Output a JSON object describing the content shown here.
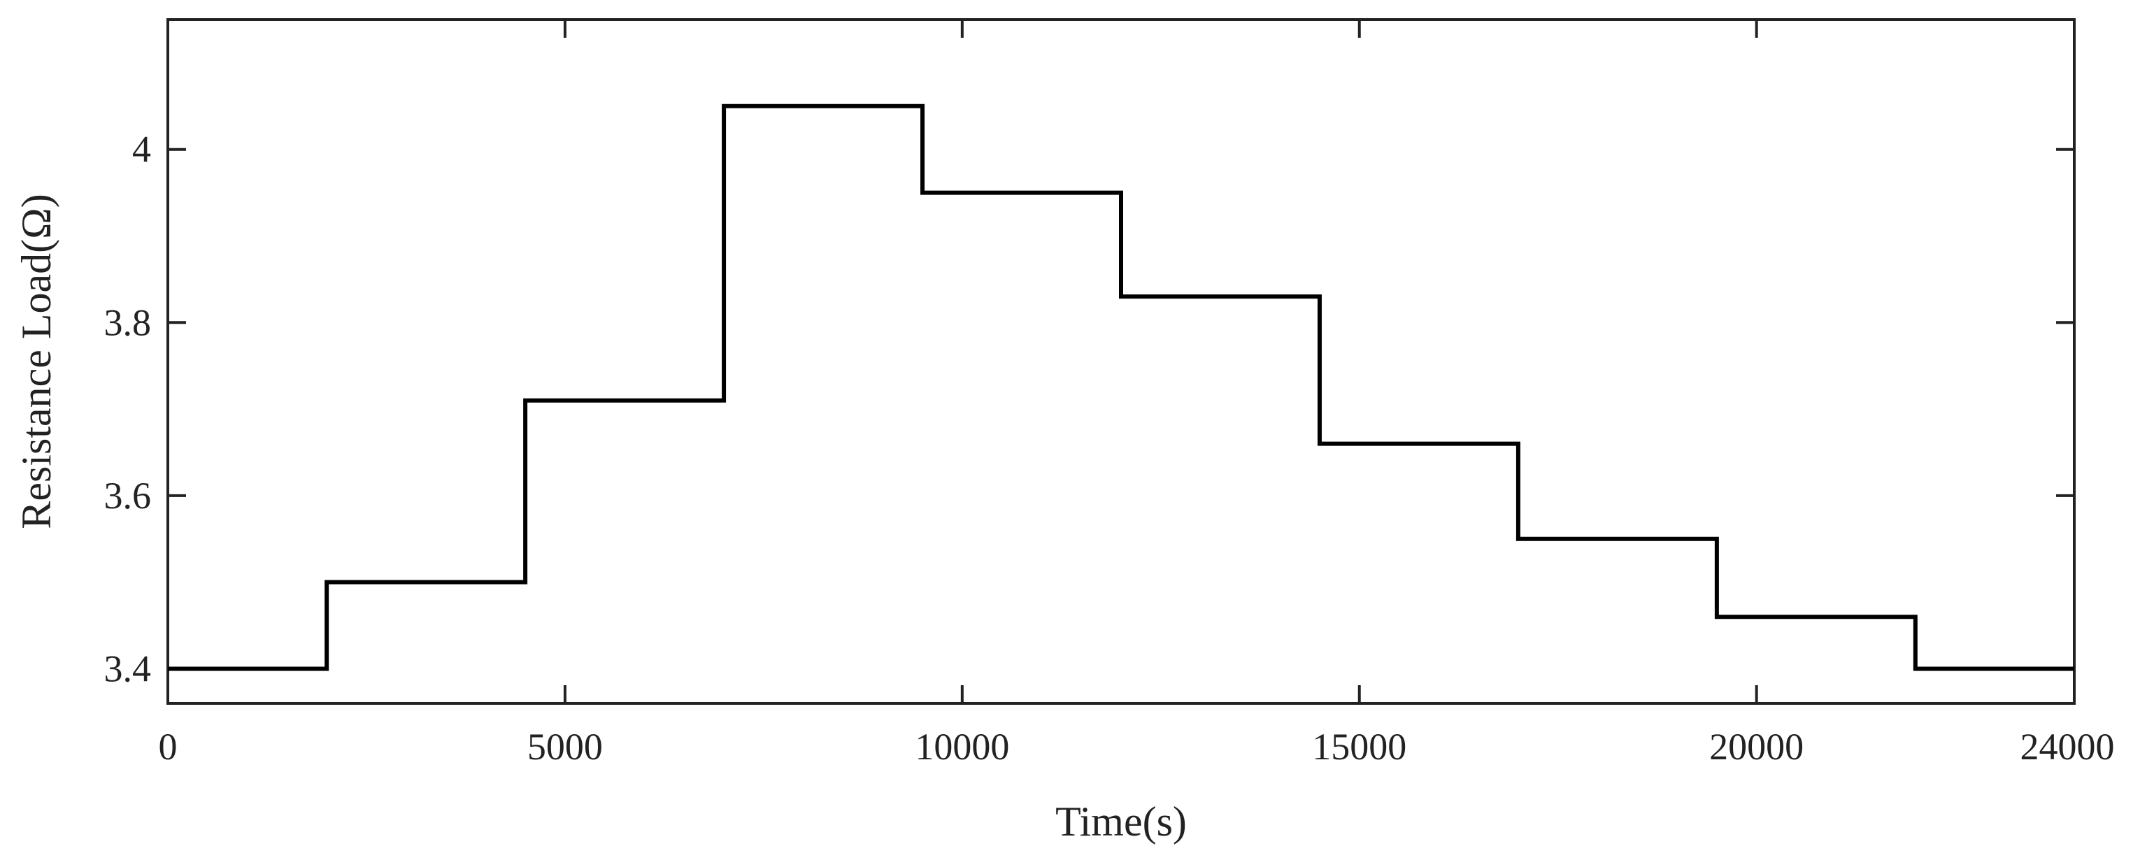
{
  "chart_data": {
    "type": "line",
    "step": "post",
    "xlabel": "Time(s)",
    "ylabel": "Resistance Load(Ω)",
    "xlim": [
      0,
      24000
    ],
    "ylim": [
      3.36,
      4.15
    ],
    "xticks": [
      0,
      5000,
      10000,
      15000,
      20000,
      24000
    ],
    "xtick_labels": [
      "0",
      "5000",
      "10000",
      "15000",
      "20000",
      "24000"
    ],
    "yticks": [
      3.4,
      3.6,
      3.8,
      4.0
    ],
    "ytick_labels": [
      "3.4",
      "3.6",
      "3.8",
      "4"
    ],
    "grid": false,
    "line_color": "#000000",
    "series": [
      {
        "x": [
          0,
          2000,
          4500,
          7000,
          9500,
          12000,
          14500,
          17000,
          19500,
          22000,
          24000
        ],
        "y": [
          3.4,
          3.5,
          3.71,
          4.05,
          3.95,
          3.83,
          3.66,
          3.55,
          3.46,
          3.4,
          3.4
        ]
      }
    ]
  }
}
